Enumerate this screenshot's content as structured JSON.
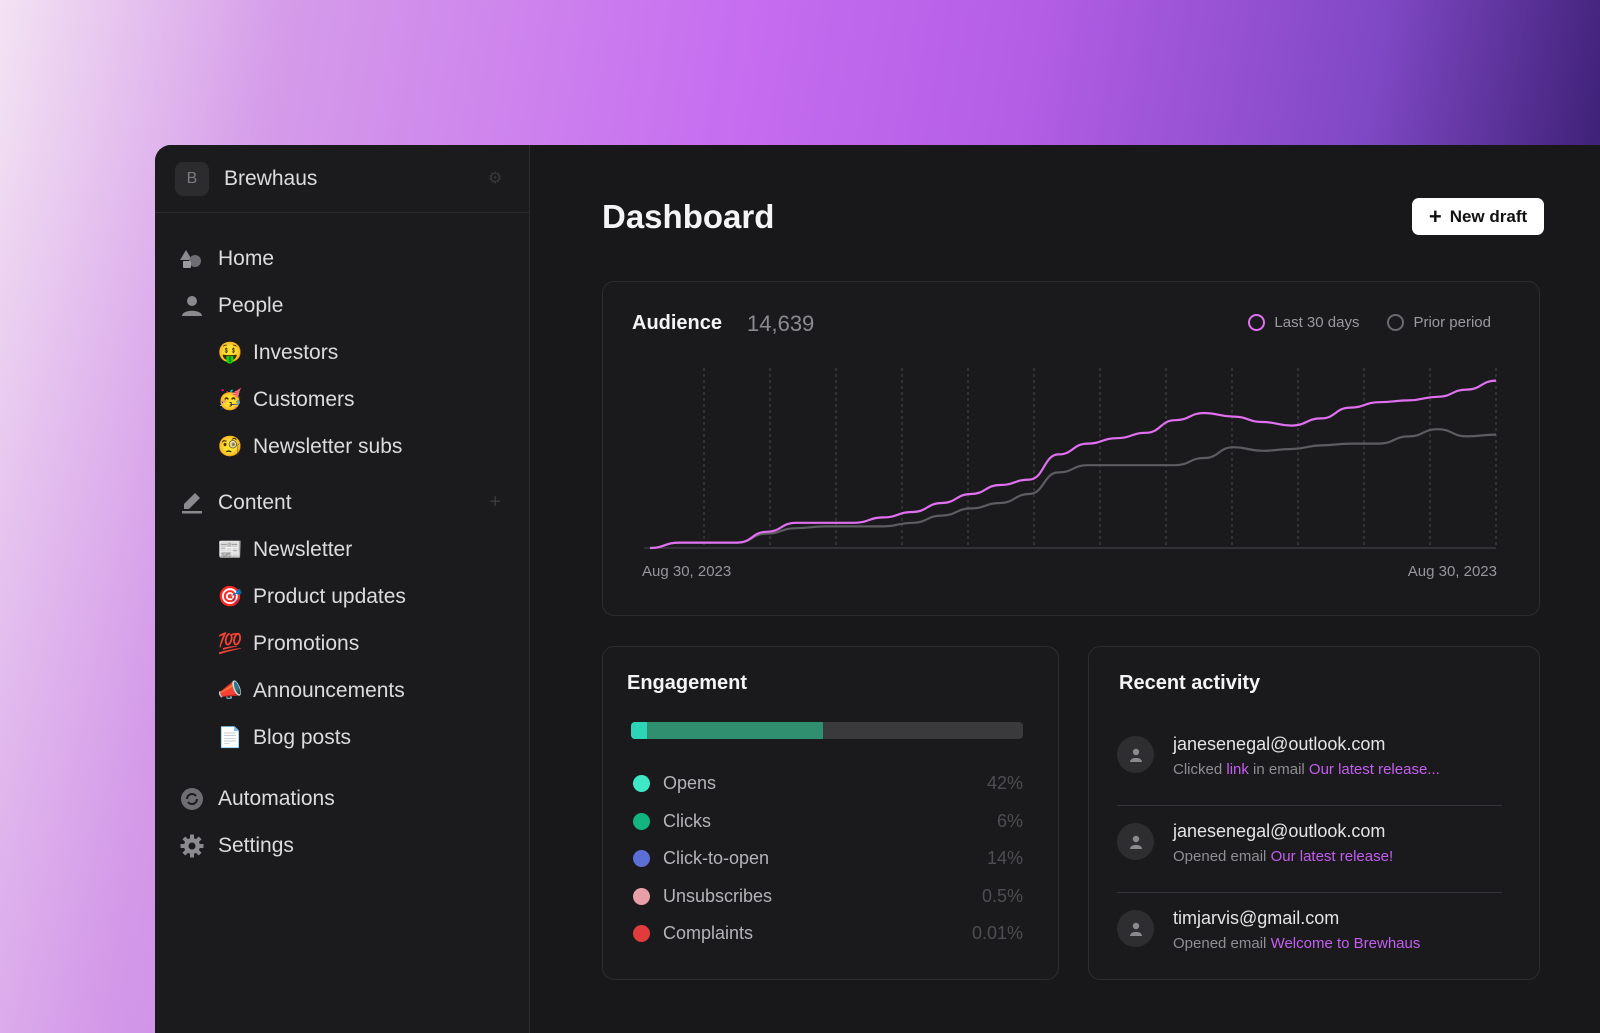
{
  "workspace": {
    "initial": "B",
    "name": "Brewhaus"
  },
  "sidebar": {
    "items": [
      {
        "label": "Home",
        "icon": "shapes-icon"
      },
      {
        "label": "People",
        "icon": "person-icon"
      },
      {
        "label": "Investors",
        "emoji": "🤑"
      },
      {
        "label": "Customers",
        "emoji": "🥳"
      },
      {
        "label": "Newsletter subs",
        "emoji": "🧐"
      },
      {
        "label": "Content",
        "icon": "pencil-icon"
      },
      {
        "label": "Newsletter",
        "emoji": "📰"
      },
      {
        "label": "Product updates",
        "emoji": "🎯"
      },
      {
        "label": "Promotions",
        "emoji": "💯"
      },
      {
        "label": "Announcements",
        "emoji": "📣"
      },
      {
        "label": "Blog posts",
        "emoji": "📄"
      },
      {
        "label": "Automations",
        "icon": "refresh-icon"
      },
      {
        "label": "Settings",
        "icon": "gear-icon"
      }
    ]
  },
  "header": {
    "title": "Dashboard",
    "new_draft_label": "New draft"
  },
  "audience": {
    "title": "Audience",
    "count": "14,639",
    "legend": {
      "current": "Last 30 days",
      "prior": "Prior period"
    },
    "date_start": "Aug 30, 2023",
    "date_end": "Aug 30, 2023"
  },
  "chart_data": {
    "type": "line",
    "series": [
      {
        "name": "Last 30 days",
        "color": "#e070f0",
        "values": [
          0,
          3,
          3,
          3,
          9,
          14,
          14,
          14,
          17,
          20,
          25,
          30,
          35,
          38,
          52,
          58,
          61,
          64,
          71,
          75,
          73,
          70,
          68,
          72,
          78,
          81,
          82,
          84,
          88,
          93
        ]
      },
      {
        "name": "Prior period",
        "color": "#5c5c61",
        "values": [
          0,
          3,
          3,
          3,
          8,
          11,
          12,
          12,
          12,
          14,
          18,
          22,
          25,
          30,
          42,
          46,
          46,
          46,
          46,
          50,
          56,
          54,
          55,
          57,
          58,
          58,
          62,
          66,
          62,
          63
        ]
      }
    ],
    "x_start": "Aug 30, 2023",
    "x_end": "Aug 30, 2023",
    "ylim": [
      0,
      100
    ],
    "grid": "vertical dashed"
  },
  "engagement": {
    "title": "Engagement",
    "bar_segments": [
      {
        "fraction": 0.04,
        "color": "#2dd4b8"
      },
      {
        "fraction": 0.45,
        "color": "#2f8f6f"
      }
    ],
    "items": [
      {
        "label": "Opens",
        "value": "42%",
        "color": "#3ee8c6"
      },
      {
        "label": "Clicks",
        "value": "6%",
        "color": "#12b57e"
      },
      {
        "label": "Click-to-open",
        "value": "14%",
        "color": "#5b6fd6"
      },
      {
        "label": "Unsubscribes",
        "value": "0.5%",
        "color": "#e8a0a8"
      },
      {
        "label": "Complaints",
        "value": "0.01%",
        "color": "#e23b3b"
      }
    ]
  },
  "activity": {
    "title": "Recent activity",
    "items": [
      {
        "email": "janesenegal@outlook.com",
        "pre": "Clicked ",
        "link1": "link",
        "mid": " in email ",
        "link2": "Our latest release..."
      },
      {
        "email": "janesenegal@outlook.com",
        "pre": "Opened email ",
        "link1": "",
        "mid": "",
        "link2": "Our latest release!"
      },
      {
        "email": "timjarvis@gmail.com",
        "pre": "Opened email ",
        "link1": "",
        "mid": "",
        "link2": "Welcome to Brewhaus"
      }
    ]
  }
}
